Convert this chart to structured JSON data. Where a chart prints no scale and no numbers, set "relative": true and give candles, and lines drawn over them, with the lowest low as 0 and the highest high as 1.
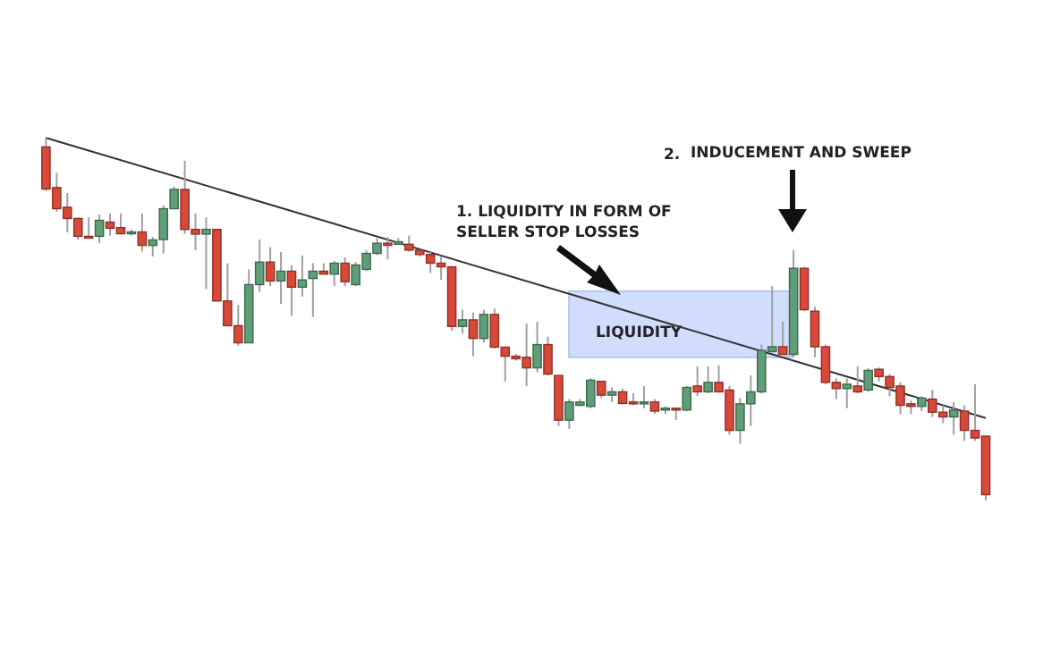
{
  "chart_data": {
    "type": "candlestick",
    "relative": true,
    "tick_labels": false,
    "categories": [
      null,
      null,
      null,
      null,
      null,
      null,
      null,
      null,
      null,
      null,
      null,
      null,
      null,
      null,
      null,
      null,
      null,
      null,
      null,
      null,
      null,
      null,
      null,
      null,
      null,
      null,
      null,
      null,
      null,
      null,
      null,
      null,
      null,
      null,
      null,
      null,
      null,
      null,
      null,
      null,
      null,
      null,
      null,
      null,
      null,
      null,
      null,
      null,
      null,
      null,
      null,
      null,
      null,
      null,
      null,
      null,
      null,
      null,
      null,
      null,
      null,
      null,
      null,
      null,
      null,
      null,
      null,
      null,
      null,
      null,
      null,
      null,
      null,
      null,
      null,
      null,
      null,
      null,
      null,
      null,
      null,
      null,
      null,
      null,
      null,
      null,
      null,
      null,
      null
    ],
    "colors": [
      "#d9493a",
      "#d9493a",
      "#d9493a",
      "#d9493a",
      "#d9493a",
      "#5e9e78",
      "#d9493a",
      "#d9493a",
      "#5e9e78",
      "#d9493a",
      "#5e9e78",
      "#5e9e78",
      "#5e9e78",
      "#d9493a",
      "#d9493a",
      "#5e9e78",
      "#d9493a",
      "#d9493a",
      "#d9493a",
      "#5e9e78",
      "#5e9e78",
      "#d9493a",
      "#5e9e78",
      "#d9493a",
      "#5e9e78",
      "#5e9e78",
      "#d9493a",
      "#5e9e78",
      "#d9493a",
      "#5e9e78",
      "#5e9e78",
      "#5e9e78",
      "#d9493a",
      "#5e9e78",
      "#d9493a",
      "#d9493a",
      "#d9493a",
      "#d9493a",
      "#d9493a",
      "#5e9e78",
      "#d9493a",
      "#5e9e78",
      "#d9493a",
      "#d9493a",
      "#d9493a",
      "#d9493a",
      "#5e9e78",
      "#d9493a",
      "#d9493a",
      "#5e9e78",
      "#5e9e78",
      "#5e9e78",
      "#d9493a",
      "#5e9e78",
      "#d9493a",
      "#d9493a",
      "#5e9e78",
      "#d9493a",
      "#5e9e78",
      "#d9493a",
      "#5e9e78",
      "#d9493a",
      "#5e9e78",
      "#d9493a",
      "#d9493a",
      "#5e9e78",
      "#5e9e78",
      "#5e9e78",
      "#5e9e78",
      "#d9493a",
      "#5e9e78",
      "#d9493a",
      "#d9493a",
      "#d9493a",
      "#d9493a",
      "#5e9e78",
      "#d9493a",
      "#5e9e78",
      "#d9493a",
      "#d9493a",
      "#d9493a",
      "#d9493a",
      "#5e9e78",
      "#d9493a",
      "#d9493a",
      "#5e9e78",
      "#d9493a",
      "#d9493a",
      "#d9493a"
    ],
    "ohlc": [
      [
        0.973,
        1,
        0.852,
        0.857
      ],
      [
        0.861,
        0.902,
        0.795,
        0.803
      ],
      [
        0.807,
        0.846,
        0.738,
        0.776
      ],
      [
        0.776,
        0.779,
        0.718,
        0.727
      ],
      [
        0.727,
        0.779,
        0.724,
        0.726
      ],
      [
        0.727,
        0.787,
        0.708,
        0.771
      ],
      [
        0.766,
        0.79,
        0.729,
        0.749
      ],
      [
        0.751,
        0.79,
        0.733,
        0.734
      ],
      [
        0.734,
        0.746,
        0.729,
        0.739
      ],
      [
        0.739,
        0.79,
        0.685,
        0.702
      ],
      [
        0.702,
        0.725,
        0.672,
        0.717
      ],
      [
        0.718,
        0.812,
        0.68,
        0.803
      ],
      [
        0.803,
        0.864,
        0.803,
        0.856
      ],
      [
        0.856,
        0.935,
        0.734,
        0.746
      ],
      [
        0.746,
        0.79,
        0.689,
        0.733
      ],
      [
        0.733,
        0.779,
        0.582,
        0.746
      ],
      [
        0.746,
        0.746,
        0.549,
        0.549
      ],
      [
        0.549,
        0.653,
        0.481,
        0.481
      ],
      [
        0.481,
        0.538,
        0.426,
        0.434
      ],
      [
        0.434,
        0.636,
        0.434,
        0.594
      ],
      [
        0.594,
        0.718,
        0.574,
        0.656
      ],
      [
        0.656,
        0.697,
        0.59,
        0.604
      ],
      [
        0.604,
        0.684,
        0.541,
        0.631
      ],
      [
        0.631,
        0.648,
        0.508,
        0.587
      ],
      [
        0.587,
        0.675,
        0.561,
        0.607
      ],
      [
        0.611,
        0.653,
        0.505,
        0.631
      ],
      [
        0.631,
        0.653,
        0.623,
        0.623
      ],
      [
        0.623,
        0.659,
        0.59,
        0.653
      ],
      [
        0.653,
        0.669,
        0.59,
        0.602
      ],
      [
        0.594,
        0.656,
        0.59,
        0.648
      ],
      [
        0.636,
        0.689,
        0.631,
        0.68
      ],
      [
        0.68,
        0.722,
        0.675,
        0.708
      ],
      [
        0.708,
        0.725,
        0.664,
        0.702
      ],
      [
        0.705,
        0.722,
        0.705,
        0.712
      ],
      [
        0.705,
        0.729,
        0.685,
        0.689
      ],
      [
        0.689,
        0.692,
        0.672,
        0.677
      ],
      [
        0.677,
        0.685,
        0.626,
        0.653
      ],
      [
        0.653,
        0.672,
        0.607,
        0.643
      ],
      [
        0.643,
        0.643,
        0.467,
        0.479
      ],
      [
        0.479,
        0.525,
        0.459,
        0.497
      ],
      [
        0.497,
        0.517,
        0.397,
        0.446
      ],
      [
        0.446,
        0.525,
        0.434,
        0.512
      ],
      [
        0.512,
        0.528,
        0.418,
        0.422
      ],
      [
        0.422,
        0.422,
        0.328,
        0.397
      ],
      [
        0.397,
        0.403,
        0.385,
        0.39
      ],
      [
        0.394,
        0.487,
        0.315,
        0.365
      ],
      [
        0.365,
        0.492,
        0.353,
        0.429
      ],
      [
        0.429,
        0.451,
        0.344,
        0.348
      ],
      [
        0.344,
        0.344,
        0.205,
        0.221
      ],
      [
        0.221,
        0.279,
        0.197,
        0.271
      ],
      [
        0.262,
        0.279,
        0.259,
        0.271
      ],
      [
        0.259,
        0.336,
        0.254,
        0.331
      ],
      [
        0.328,
        0.328,
        0.282,
        0.29
      ],
      [
        0.29,
        0.311,
        0.271,
        0.299
      ],
      [
        0.299,
        0.308,
        0.266,
        0.267
      ],
      [
        0.271,
        0.295,
        0.262,
        0.266
      ],
      [
        0.266,
        0.315,
        0.254,
        0.271
      ],
      [
        0.271,
        0.279,
        0.238,
        0.246
      ],
      [
        0.249,
        0.259,
        0.238,
        0.254
      ],
      [
        0.254,
        0.256,
        0.221,
        0.249
      ],
      [
        0.249,
        0.315,
        0.246,
        0.311
      ],
      [
        0.315,
        0.369,
        0.287,
        0.299
      ],
      [
        0.299,
        0.369,
        0.295,
        0.325
      ],
      [
        0.325,
        0.372,
        0.299,
        0.299
      ],
      [
        0.304,
        0.315,
        0.181,
        0.193
      ],
      [
        0.193,
        0.282,
        0.156,
        0.266
      ],
      [
        0.266,
        0.344,
        0.205,
        0.299
      ],
      [
        0.299,
        0.429,
        0.295,
        0.413
      ],
      [
        0.41,
        0.59,
        0.407,
        0.423
      ],
      [
        0.423,
        0.492,
        0.402,
        0.402
      ],
      [
        0.402,
        0.689,
        0.394,
        0.639
      ],
      [
        0.639,
        0.643,
        0.521,
        0.525
      ],
      [
        0.521,
        0.533,
        0.394,
        0.423
      ],
      [
        0.423,
        0.429,
        0.32,
        0.325
      ],
      [
        0.325,
        0.336,
        0.279,
        0.308
      ],
      [
        0.308,
        0.336,
        0.254,
        0.32
      ],
      [
        0.315,
        0.369,
        0.295,
        0.299
      ],
      [
        0.304,
        0.364,
        0.299,
        0.358
      ],
      [
        0.361,
        0.366,
        0.328,
        0.341
      ],
      [
        0.341,
        0.348,
        0.287,
        0.311
      ],
      [
        0.315,
        0.325,
        0.238,
        0.262
      ],
      [
        0.266,
        0.275,
        0.238,
        0.259
      ],
      [
        0.259,
        0.287,
        0.246,
        0.282
      ],
      [
        0.279,
        0.304,
        0.23,
        0.243
      ],
      [
        0.243,
        0.262,
        0.213,
        0.23
      ],
      [
        0.23,
        0.271,
        0.181,
        0.249
      ],
      [
        0.246,
        0.262,
        0.164,
        0.193
      ],
      [
        0.193,
        0.32,
        0.164,
        0.172
      ],
      [
        0.177,
        0.177,
        0,
        0.016
      ]
    ],
    "series": [
      {
        "type": "line",
        "values": [
          0.998,
          null,
          null,
          null,
          null,
          null,
          null,
          null,
          null,
          null,
          null,
          null,
          null,
          null,
          null,
          null,
          null,
          null,
          null,
          null,
          null,
          null,
          null,
          null,
          null,
          null,
          null,
          null,
          null,
          null,
          null,
          null,
          null,
          null,
          null,
          null,
          null,
          null,
          null,
          null,
          null,
          null,
          null,
          null,
          null,
          null,
          null,
          null,
          null,
          null,
          null,
          null,
          null,
          null,
          null,
          null,
          null,
          null,
          null,
          null,
          null,
          null,
          null,
          null,
          null,
          null,
          null,
          null,
          null,
          null,
          null,
          null,
          null,
          null,
          null,
          null,
          null,
          null,
          null,
          null,
          null,
          null,
          null,
          null,
          null,
          null,
          null,
          null,
          0.227
        ],
        "color": "#333333",
        "line_style": "solid"
      }
    ],
    "bands": [
      {
        "axis": "y",
        "from": 0.394,
        "to": 0.576,
        "label": "LIQUIDITY",
        "color": "#c9d7fb"
      }
    ],
    "annotations": [
      "1. LIQUIDITY IN FORM OF SELLER STOP LOSSES",
      "2.",
      "INDUCEMENT AND SWEEP"
    ]
  }
}
